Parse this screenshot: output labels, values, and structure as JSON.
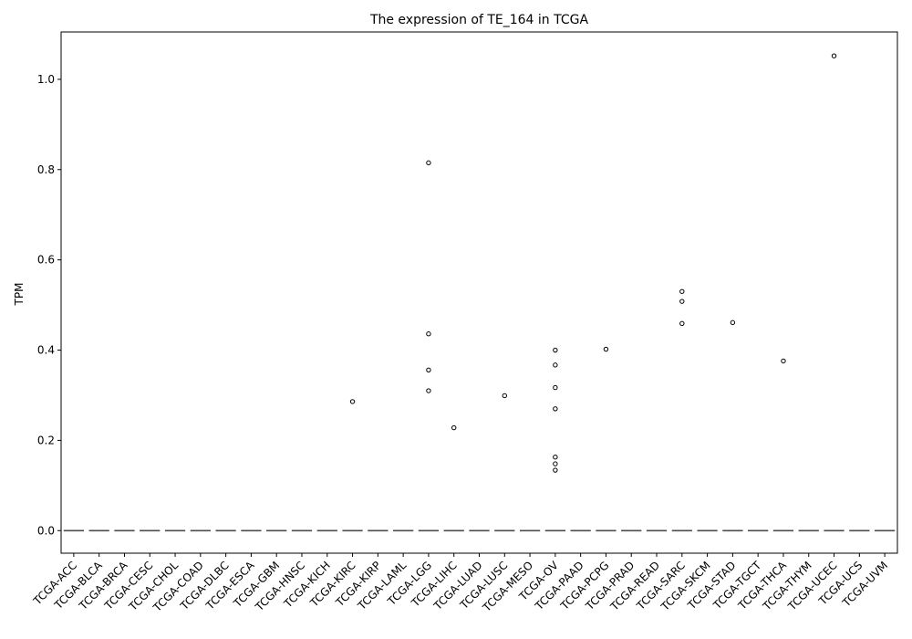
{
  "chart_data": {
    "type": "box",
    "title": "The expression of TE_164 in TCGA",
    "xlabel": "",
    "ylabel": "TPM",
    "ylim": [
      -0.05,
      1.105
    ],
    "yticks": [
      0.0,
      0.2,
      0.4,
      0.6,
      0.8,
      1.0
    ],
    "ytick_labels": [
      "0.0",
      "0.2",
      "0.4",
      "0.6",
      "0.8",
      "1.0"
    ],
    "grid": false,
    "legend": "none",
    "categories": [
      "TCGA-ACC",
      "TCGA-BLCA",
      "TCGA-BRCA",
      "TCGA-CESC",
      "TCGA-CHOL",
      "TCGA-COAD",
      "TCGA-DLBC",
      "TCGA-ESCA",
      "TCGA-GBM",
      "TCGA-HNSC",
      "TCGA-KICH",
      "TCGA-KIRC",
      "TCGA-KIRP",
      "TCGA-LAML",
      "TCGA-LGG",
      "TCGA-LIHC",
      "TCGA-LUAD",
      "TCGA-LUSC",
      "TCGA-MESO",
      "TCGA-OV",
      "TCGA-PAAD",
      "TCGA-PCPG",
      "TCGA-PRAD",
      "TCGA-READ",
      "TCGA-SARC",
      "TCGA-SKCM",
      "TCGA-STAD",
      "TCGA-TGCT",
      "TCGA-THCA",
      "TCGA-THYM",
      "TCGA-UCEC",
      "TCGA-UCS",
      "TCGA-UVM"
    ],
    "median": 0.0,
    "box_color": "#4c4c4c",
    "outliers": [
      {
        "category": "TCGA-KIRC",
        "values": [
          0.286
        ]
      },
      {
        "category": "TCGA-LGG",
        "values": [
          0.815,
          0.436,
          0.356,
          0.31
        ]
      },
      {
        "category": "TCGA-LIHC",
        "values": [
          0.228
        ]
      },
      {
        "category": "TCGA-LUSC",
        "values": [
          0.299
        ]
      },
      {
        "category": "TCGA-OV",
        "values": [
          0.4,
          0.367,
          0.317,
          0.27,
          0.163,
          0.148,
          0.134
        ]
      },
      {
        "category": "TCGA-PCPG",
        "values": [
          0.402
        ]
      },
      {
        "category": "TCGA-SARC",
        "values": [
          0.53,
          0.508,
          0.459
        ]
      },
      {
        "category": "TCGA-STAD",
        "values": [
          0.461
        ]
      },
      {
        "category": "TCGA-THCA",
        "values": [
          0.376
        ]
      },
      {
        "category": "TCGA-UCEC",
        "values": [
          1.052
        ]
      }
    ]
  }
}
